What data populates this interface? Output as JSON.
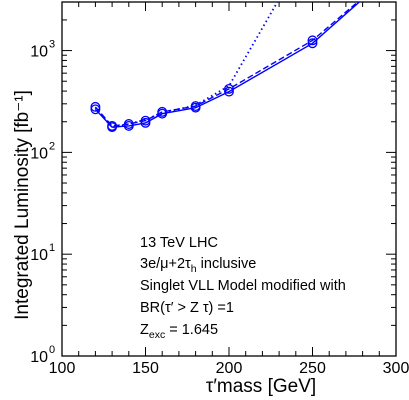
{
  "chart_data": {
    "type": "line",
    "xlabel": "τ′mass  [GeV]",
    "ylabel": "Integrated Luminosity [fb⁻¹]",
    "xlim": [
      100,
      300
    ],
    "ylim": [
      1,
      3000
    ],
    "y_scale": "log",
    "x_ticks": [
      100,
      150,
      200,
      250,
      300
    ],
    "y_ticks": [
      {
        "mantissa": "10",
        "exp": "0",
        "value": 1
      },
      {
        "mantissa": "10",
        "exp": "1",
        "value": 10
      },
      {
        "mantissa": "10",
        "exp": "2",
        "value": 100
      },
      {
        "mantissa": "10",
        "exp": "3",
        "value": 1000
      }
    ],
    "grid": false,
    "series": [
      {
        "style": "solid",
        "color": "#0000ff",
        "x": [
          120,
          130,
          140,
          150,
          160,
          180,
          200,
          250,
          280
        ],
        "y": [
          265,
          177,
          182,
          195,
          240,
          275,
          395,
          1180,
          3200
        ]
      },
      {
        "style": "dashed",
        "color": "#0000ff",
        "x": [
          120,
          130,
          140,
          150,
          160,
          180,
          200,
          250,
          280
        ],
        "y": [
          280,
          182,
          190,
          205,
          250,
          285,
          420,
          1260,
          3300
        ]
      },
      {
        "style": "dotted",
        "color": "#0000ff",
        "x": [
          120,
          130,
          140,
          150,
          160,
          180,
          200,
          230
        ],
        "y": [
          275,
          175,
          190,
          210,
          245,
          290,
          450,
          3200
        ]
      }
    ],
    "markers": {
      "symbol": "open-circle",
      "color": "#0000ff",
      "points": [
        {
          "x": 120,
          "y": 265
        },
        {
          "x": 120,
          "y": 280
        },
        {
          "x": 130,
          "y": 177
        },
        {
          "x": 130,
          "y": 182
        },
        {
          "x": 140,
          "y": 182
        },
        {
          "x": 140,
          "y": 190
        },
        {
          "x": 150,
          "y": 195
        },
        {
          "x": 150,
          "y": 205
        },
        {
          "x": 160,
          "y": 240
        },
        {
          "x": 160,
          "y": 250
        },
        {
          "x": 180,
          "y": 275
        },
        {
          "x": 180,
          "y": 285
        },
        {
          "x": 200,
          "y": 395
        },
        {
          "x": 200,
          "y": 420
        },
        {
          "x": 250,
          "y": 1180
        },
        {
          "x": 250,
          "y": 1260
        }
      ]
    },
    "annotation": {
      "line1": "13 TeV LHC",
      "line2_main": "3e/μ+2τ",
      "line2_sub": "h",
      "line2_rest": " inclusive",
      "line3": "Singlet VLL Model modified with",
      "line4": "BR(τ′ > Z τ) =1",
      "line5_main": "Z",
      "line5_sub": "exc",
      "line5_rest": " = 1.645"
    }
  }
}
